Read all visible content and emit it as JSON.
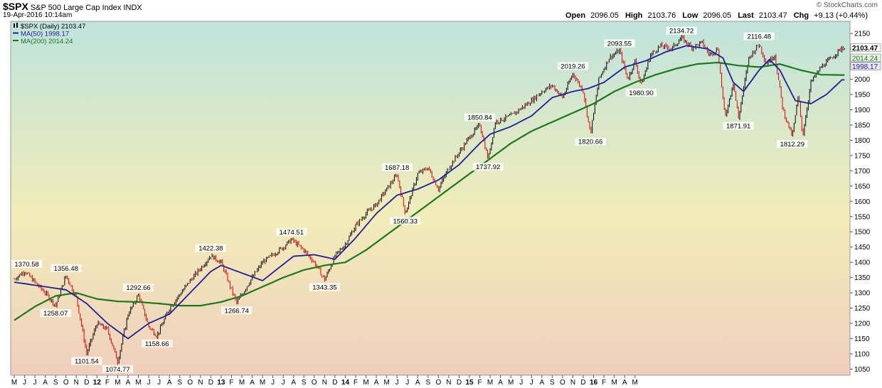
{
  "header": {
    "symbol": "$SPX",
    "description": "S&P 500 Large Cap Index INDX",
    "date": "19-Apr-2016 10:14am",
    "brand": "© StockCharts.com",
    "open_label": "Open",
    "open": "2096.05",
    "high_label": "High",
    "high": "2103.76",
    "low_label": "Low",
    "low": "2096.05",
    "last_label": "Last",
    "last": "2103.47",
    "chg_label": "Chg",
    "chg": "+9.13 (+0.44%)"
  },
  "legend": [
    {
      "label": "$SPX (Daily) 2103.47",
      "color": "#000000",
      "icon": "candlestick-icon"
    },
    {
      "label": "MA(50) 1998.17",
      "color": "#1f1f99"
    },
    {
      "label": "MA(200) 2014.24",
      "color": "#1a7a1a"
    }
  ],
  "colors": {
    "price_up": "#000000",
    "price_down": "#dd0000",
    "ma50": "#1f1f99",
    "ma200": "#1a7a1a",
    "bg_top": "#bfe3dc",
    "bg_bottom": "#f0cfbd"
  },
  "chart_data": {
    "type": "line",
    "title": "$SPX S&P 500 Large Cap Index INDX",
    "ylim": [
      1030,
      2190
    ],
    "y_ticks": [
      1050,
      1100,
      1150,
      1200,
      1250,
      1300,
      1350,
      1400,
      1450,
      1500,
      1550,
      1600,
      1650,
      1700,
      1750,
      1800,
      1850,
      1900,
      1950,
      2000,
      2050,
      2100,
      2150
    ],
    "x_tick_labels": [
      "M",
      "J",
      "J",
      "A",
      "S",
      "O",
      "N",
      "D",
      "12",
      "F",
      "M",
      "A",
      "M",
      "J",
      "J",
      "A",
      "S",
      "O",
      "N",
      "D",
      "13",
      "F",
      "M",
      "A",
      "M",
      "J",
      "J",
      "A",
      "S",
      "O",
      "N",
      "D",
      "14",
      "F",
      "M",
      "A",
      "M",
      "J",
      "J",
      "A",
      "S",
      "O",
      "N",
      "D",
      "15",
      "F",
      "M",
      "A",
      "M",
      "J",
      "J",
      "A",
      "S",
      "O",
      "N",
      "D",
      "16",
      "F",
      "M",
      "A",
      "M"
    ],
    "price_keypoints": [
      {
        "i": 0,
        "v": 1345
      },
      {
        "i": 1,
        "v": 1371
      },
      {
        "i": 2,
        "v": 1335
      },
      {
        "i": 3,
        "v": 1300
      },
      {
        "i": 4,
        "v": 1258
      },
      {
        "i": 5,
        "v": 1356
      },
      {
        "i": 6,
        "v": 1285
      },
      {
        "i": 7,
        "v": 1101
      },
      {
        "i": 8,
        "v": 1200
      },
      {
        "i": 9,
        "v": 1180
      },
      {
        "i": 10,
        "v": 1075
      },
      {
        "i": 11,
        "v": 1230
      },
      {
        "i": 12,
        "v": 1293
      },
      {
        "i": 13,
        "v": 1190
      },
      {
        "i": 13.8,
        "v": 1159
      },
      {
        "i": 15,
        "v": 1250
      },
      {
        "i": 17,
        "v": 1340
      },
      {
        "i": 18,
        "v": 1380
      },
      {
        "i": 19,
        "v": 1422
      },
      {
        "i": 20,
        "v": 1400
      },
      {
        "i": 21,
        "v": 1310
      },
      {
        "i": 21.5,
        "v": 1267
      },
      {
        "i": 23,
        "v": 1350
      },
      {
        "i": 24,
        "v": 1400
      },
      {
        "i": 26,
        "v": 1450
      },
      {
        "i": 26.8,
        "v": 1475
      },
      {
        "i": 28,
        "v": 1440
      },
      {
        "i": 29,
        "v": 1400
      },
      {
        "i": 30,
        "v": 1343
      },
      {
        "i": 31,
        "v": 1420
      },
      {
        "i": 32,
        "v": 1460
      },
      {
        "i": 33,
        "v": 1520
      },
      {
        "i": 34,
        "v": 1560
      },
      {
        "i": 35,
        "v": 1590
      },
      {
        "i": 36,
        "v": 1640
      },
      {
        "i": 37,
        "v": 1687
      },
      {
        "i": 37.8,
        "v": 1560
      },
      {
        "i": 39,
        "v": 1690
      },
      {
        "i": 40,
        "v": 1710
      },
      {
        "i": 41,
        "v": 1640
      },
      {
        "i": 42,
        "v": 1710
      },
      {
        "i": 43,
        "v": 1760
      },
      {
        "i": 44,
        "v": 1810
      },
      {
        "i": 45,
        "v": 1851
      },
      {
        "i": 45.8,
        "v": 1738
      },
      {
        "i": 46.5,
        "v": 1860
      },
      {
        "i": 48,
        "v": 1880
      },
      {
        "i": 50,
        "v": 1930
      },
      {
        "i": 51,
        "v": 1960
      },
      {
        "i": 52,
        "v": 1980
      },
      {
        "i": 53,
        "v": 1940
      },
      {
        "i": 54,
        "v": 2019
      },
      {
        "i": 55,
        "v": 1960
      },
      {
        "i": 55.7,
        "v": 1821
      },
      {
        "i": 56.5,
        "v": 2000
      },
      {
        "i": 57.5,
        "v": 2070
      },
      {
        "i": 58.5,
        "v": 2094
      },
      {
        "i": 59.3,
        "v": 2000
      },
      {
        "i": 60,
        "v": 2060
      },
      {
        "i": 60.6,
        "v": 1981
      },
      {
        "i": 61.5,
        "v": 2080
      },
      {
        "i": 62.5,
        "v": 2110
      },
      {
        "i": 63.5,
        "v": 2100
      },
      {
        "i": 64.5,
        "v": 2135
      },
      {
        "i": 65.5,
        "v": 2105
      },
      {
        "i": 66.5,
        "v": 2120
      },
      {
        "i": 67.2,
        "v": 2080
      },
      {
        "i": 68,
        "v": 2100
      },
      {
        "i": 68.7,
        "v": 1872
      },
      {
        "i": 69.5,
        "v": 1990
      },
      {
        "i": 70,
        "v": 1872
      },
      {
        "i": 71,
        "v": 2070
      },
      {
        "i": 72,
        "v": 2116
      },
      {
        "i": 72.7,
        "v": 2050
      },
      {
        "i": 73.5,
        "v": 2080
      },
      {
        "i": 74.3,
        "v": 1900
      },
      {
        "i": 75.2,
        "v": 1812
      },
      {
        "i": 75.8,
        "v": 1950
      },
      {
        "i": 76.2,
        "v": 1812
      },
      {
        "i": 77,
        "v": 1990
      },
      {
        "i": 78,
        "v": 2040
      },
      {
        "i": 79,
        "v": 2070
      },
      {
        "i": 80,
        "v": 2103
      }
    ],
    "ma50_keypoints": [
      {
        "i": 0,
        "v": 1335
      },
      {
        "i": 3,
        "v": 1320
      },
      {
        "i": 5,
        "v": 1310
      },
      {
        "i": 7,
        "v": 1265
      },
      {
        "i": 9,
        "v": 1200
      },
      {
        "i": 11,
        "v": 1150
      },
      {
        "i": 13,
        "v": 1200
      },
      {
        "i": 15,
        "v": 1230
      },
      {
        "i": 17,
        "v": 1300
      },
      {
        "i": 19,
        "v": 1370
      },
      {
        "i": 20,
        "v": 1390
      },
      {
        "i": 22,
        "v": 1365
      },
      {
        "i": 24,
        "v": 1340
      },
      {
        "i": 27,
        "v": 1420
      },
      {
        "i": 29,
        "v": 1425
      },
      {
        "i": 31,
        "v": 1410
      },
      {
        "i": 33,
        "v": 1480
      },
      {
        "i": 35,
        "v": 1560
      },
      {
        "i": 37,
        "v": 1620
      },
      {
        "i": 39,
        "v": 1640
      },
      {
        "i": 41,
        "v": 1670
      },
      {
        "i": 43,
        "v": 1720
      },
      {
        "i": 45,
        "v": 1790
      },
      {
        "i": 46,
        "v": 1820
      },
      {
        "i": 48,
        "v": 1845
      },
      {
        "i": 50,
        "v": 1880
      },
      {
        "i": 52,
        "v": 1940
      },
      {
        "i": 54,
        "v": 1960
      },
      {
        "i": 55.5,
        "v": 1970
      },
      {
        "i": 57,
        "v": 1990
      },
      {
        "i": 59,
        "v": 2040
      },
      {
        "i": 61,
        "v": 2060
      },
      {
        "i": 63,
        "v": 2090
      },
      {
        "i": 65,
        "v": 2110
      },
      {
        "i": 67,
        "v": 2100
      },
      {
        "i": 68.5,
        "v": 2070
      },
      {
        "i": 69.5,
        "v": 1990
      },
      {
        "i": 70.5,
        "v": 1960
      },
      {
        "i": 72,
        "v": 2030
      },
      {
        "i": 73,
        "v": 2065
      },
      {
        "i": 74,
        "v": 2030
      },
      {
        "i": 75.5,
        "v": 1930
      },
      {
        "i": 77,
        "v": 1920
      },
      {
        "i": 78.5,
        "v": 1950
      },
      {
        "i": 80,
        "v": 1998
      }
    ],
    "ma200_keypoints": [
      {
        "i": 0,
        "v": 1210
      },
      {
        "i": 2,
        "v": 1255
      },
      {
        "i": 4,
        "v": 1290
      },
      {
        "i": 6,
        "v": 1300
      },
      {
        "i": 8,
        "v": 1280
      },
      {
        "i": 10,
        "v": 1272
      },
      {
        "i": 12,
        "v": 1270
      },
      {
        "i": 14,
        "v": 1265
      },
      {
        "i": 16,
        "v": 1258
      },
      {
        "i": 18,
        "v": 1258
      },
      {
        "i": 20,
        "v": 1270
      },
      {
        "i": 22,
        "v": 1290
      },
      {
        "i": 24,
        "v": 1320
      },
      {
        "i": 26,
        "v": 1350
      },
      {
        "i": 28,
        "v": 1375
      },
      {
        "i": 30,
        "v": 1390
      },
      {
        "i": 32,
        "v": 1400
      },
      {
        "i": 34,
        "v": 1440
      },
      {
        "i": 36,
        "v": 1490
      },
      {
        "i": 38,
        "v": 1540
      },
      {
        "i": 40,
        "v": 1590
      },
      {
        "i": 42,
        "v": 1640
      },
      {
        "i": 44,
        "v": 1690
      },
      {
        "i": 46,
        "v": 1740
      },
      {
        "i": 48,
        "v": 1790
      },
      {
        "i": 50,
        "v": 1830
      },
      {
        "i": 52,
        "v": 1860
      },
      {
        "i": 54,
        "v": 1890
      },
      {
        "i": 56,
        "v": 1920
      },
      {
        "i": 58,
        "v": 1960
      },
      {
        "i": 60,
        "v": 1990
      },
      {
        "i": 62,
        "v": 2015
      },
      {
        "i": 64,
        "v": 2035
      },
      {
        "i": 66,
        "v": 2050
      },
      {
        "i": 68,
        "v": 2055
      },
      {
        "i": 70,
        "v": 2045
      },
      {
        "i": 72,
        "v": 2040
      },
      {
        "i": 74,
        "v": 2050
      },
      {
        "i": 76,
        "v": 2030
      },
      {
        "i": 78,
        "v": 2015
      },
      {
        "i": 80,
        "v": 2014
      }
    ],
    "annotations": [
      {
        "i": 1,
        "v": 1370.58,
        "label": "1370.58",
        "pos": "above"
      },
      {
        "i": 5,
        "v": 1356.48,
        "label": "1356.48",
        "pos": "above"
      },
      {
        "i": 4,
        "v": 1258.07,
        "label": "1258.07",
        "pos": "below"
      },
      {
        "i": 7,
        "v": 1101.54,
        "label": "1101.54",
        "pos": "below"
      },
      {
        "i": 10,
        "v": 1074.77,
        "label": "1074.77",
        "pos": "below"
      },
      {
        "i": 12,
        "v": 1292.66,
        "label": "1292.66",
        "pos": "above"
      },
      {
        "i": 13.8,
        "v": 1158.66,
        "label": "1158.66",
        "pos": "below"
      },
      {
        "i": 19,
        "v": 1422.38,
        "label": "1422.38",
        "pos": "above"
      },
      {
        "i": 21.5,
        "v": 1266.74,
        "label": "1266.74",
        "pos": "below"
      },
      {
        "i": 26.8,
        "v": 1474.51,
        "label": "1474.51",
        "pos": "above"
      },
      {
        "i": 30,
        "v": 1343.35,
        "label": "1343.35",
        "pos": "below"
      },
      {
        "i": 37,
        "v": 1687.18,
        "label": "1687.18",
        "pos": "above"
      },
      {
        "i": 37.8,
        "v": 1560.33,
        "label": "1560.33",
        "pos": "below"
      },
      {
        "i": 45,
        "v": 1850.84,
        "label": "1850.84",
        "pos": "above"
      },
      {
        "i": 45.8,
        "v": 1737.92,
        "label": "1737.92",
        "pos": "below"
      },
      {
        "i": 54,
        "v": 2019.26,
        "label": "2019.26",
        "pos": "above"
      },
      {
        "i": 55.7,
        "v": 1820.66,
        "label": "1820.66",
        "pos": "below"
      },
      {
        "i": 58.5,
        "v": 2093.55,
        "label": "2093.55",
        "pos": "above"
      },
      {
        "i": 60.6,
        "v": 1980.9,
        "label": "1980.90",
        "pos": "below"
      },
      {
        "i": 64.5,
        "v": 2134.72,
        "label": "2134.72",
        "pos": "above"
      },
      {
        "i": 70,
        "v": 1871.91,
        "label": "1871.91",
        "pos": "below"
      },
      {
        "i": 72,
        "v": 2116.48,
        "label": "2116.48",
        "pos": "above"
      },
      {
        "i": 75.2,
        "v": 1812.29,
        "label": "1812.29",
        "pos": "below"
      }
    ],
    "last_value_label": "2103.47",
    "ma200_value_label": "2014.24",
    "ma50_value_label": "1998.17",
    "grid": false
  }
}
